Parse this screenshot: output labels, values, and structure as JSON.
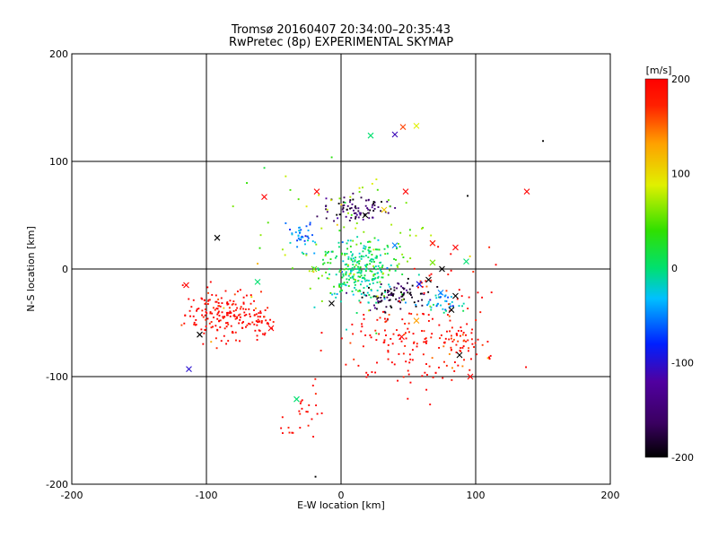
{
  "chart_data": {
    "type": "scatter",
    "title": "Tromsø 20160407 20:34:00–20:35:43",
    "subtitle": "RwPretec (8p) EXPERIMENTAL SKYMAP",
    "xlabel": "E-W location [km]",
    "ylabel": "N-S location [km]",
    "xlim": [
      -200,
      200
    ],
    "ylim": [
      -200,
      200
    ],
    "xticks": [
      "-200",
      "-100",
      "0",
      "100",
      "200"
    ],
    "yticks": [
      "-200",
      "-100",
      "0",
      "100",
      "200"
    ],
    "grid": true,
    "colorbar": {
      "label": "[m/s]",
      "range": [
        -200,
        200
      ],
      "ticks": [
        "-200",
        "-100",
        "0",
        "100",
        "200"
      ],
      "colormap": "rainbow (black-purple-blue-cyan-green-yellow-red)"
    },
    "markers": {
      "dot": "small point (dense clusters)",
      "cross": "x marker"
    },
    "clusters": [
      {
        "center": [
          -88,
          -42
        ],
        "spread": [
          14,
          12
        ],
        "n": 170,
        "v": 200
      },
      {
        "center": [
          -60,
          -50
        ],
        "spread": [
          6,
          6
        ],
        "n": 40,
        "v": 200
      },
      {
        "center": [
          12,
          0
        ],
        "spread": [
          14,
          14
        ],
        "n": 260,
        "v": 0
      },
      {
        "center": [
          12,
          56
        ],
        "spread": [
          12,
          6
        ],
        "n": 80,
        "v": -180
      },
      {
        "center": [
          -30,
          32
        ],
        "spread": [
          5,
          8
        ],
        "n": 40,
        "v": -60
      },
      {
        "center": [
          40,
          -25
        ],
        "spread": [
          12,
          7
        ],
        "n": 90,
        "v": -190
      },
      {
        "center": [
          78,
          -32
        ],
        "spread": [
          8,
          5
        ],
        "n": 40,
        "v": -40
      },
      {
        "center": [
          85,
          -70
        ],
        "spread": [
          10,
          10
        ],
        "n": 60,
        "v": 190
      },
      {
        "center": [
          40,
          -60
        ],
        "spread": [
          22,
          12
        ],
        "n": 70,
        "v": 195
      },
      {
        "center": [
          60,
          -95
        ],
        "spread": [
          30,
          12
        ],
        "n": 50,
        "v": 200
      },
      {
        "center": [
          -30,
          -135
        ],
        "spread": [
          6,
          14
        ],
        "n": 25,
        "v": 200
      },
      {
        "center": [
          10,
          20
        ],
        "spread": [
          30,
          30
        ],
        "n": 100,
        "v": 60
      },
      {
        "center": [
          70,
          -20
        ],
        "spread": [
          20,
          20
        ],
        "n": 40,
        "v": 180
      }
    ],
    "crosses": [
      {
        "x": 22,
        "y": 124,
        "v": 0
      },
      {
        "x": 40,
        "y": 125,
        "v": -120
      },
      {
        "x": 46,
        "y": 132,
        "v": 160
      },
      {
        "x": 56,
        "y": 133,
        "v": 90
      },
      {
        "x": 138,
        "y": 72,
        "v": 200
      },
      {
        "x": -92,
        "y": 29,
        "v": -200
      },
      {
        "x": -113,
        "y": -93,
        "v": -110
      },
      {
        "x": -33,
        "y": -121,
        "v": 0
      },
      {
        "x": -115,
        "y": -15,
        "v": 200
      },
      {
        "x": -62,
        "y": -12,
        "v": 0
      },
      {
        "x": -105,
        "y": -61,
        "v": -200
      },
      {
        "x": -57,
        "y": 67,
        "v": 200
      },
      {
        "x": -18,
        "y": 72,
        "v": 200
      },
      {
        "x": 32,
        "y": 55,
        "v": 110
      },
      {
        "x": 48,
        "y": 72,
        "v": 200
      },
      {
        "x": 40,
        "y": 22,
        "v": -60
      },
      {
        "x": 68,
        "y": 24,
        "v": 180
      },
      {
        "x": 85,
        "y": 20,
        "v": 200
      },
      {
        "x": 93,
        "y": 7,
        "v": 0
      },
      {
        "x": 75,
        "y": 0,
        "v": -200
      },
      {
        "x": 58,
        "y": -14,
        "v": -100
      },
      {
        "x": 65,
        "y": -10,
        "v": -200
      },
      {
        "x": 74,
        "y": -22,
        "v": -60
      },
      {
        "x": 85,
        "y": -25,
        "v": -200
      },
      {
        "x": 82,
        "y": -38,
        "v": -200
      },
      {
        "x": 56,
        "y": -48,
        "v": 130
      },
      {
        "x": 45,
        "y": -63,
        "v": 200
      },
      {
        "x": 88,
        "y": -80,
        "v": -200
      },
      {
        "x": 96,
        "y": -100,
        "v": 200
      },
      {
        "x": -7,
        "y": -32,
        "v": -200
      },
      {
        "x": -52,
        "y": -55,
        "v": 200
      },
      {
        "x": 18,
        "y": 50,
        "v": -200
      },
      {
        "x": -20,
        "y": 0,
        "v": 60
      },
      {
        "x": 68,
        "y": 6,
        "v": 60
      }
    ],
    "isolated_points": [
      {
        "x": 150,
        "y": 119,
        "v": -200
      },
      {
        "x": 94,
        "y": 68,
        "v": -200
      },
      {
        "x": 115,
        "y": 4,
        "v": 200
      },
      {
        "x": -19,
        "y": -193,
        "v": -200
      },
      {
        "x": -62,
        "y": 5,
        "v": 120
      },
      {
        "x": -57,
        "y": 94,
        "v": 20
      },
      {
        "x": -70,
        "y": 80,
        "v": 40
      },
      {
        "x": 110,
        "y": -82,
        "v": 200
      }
    ]
  }
}
